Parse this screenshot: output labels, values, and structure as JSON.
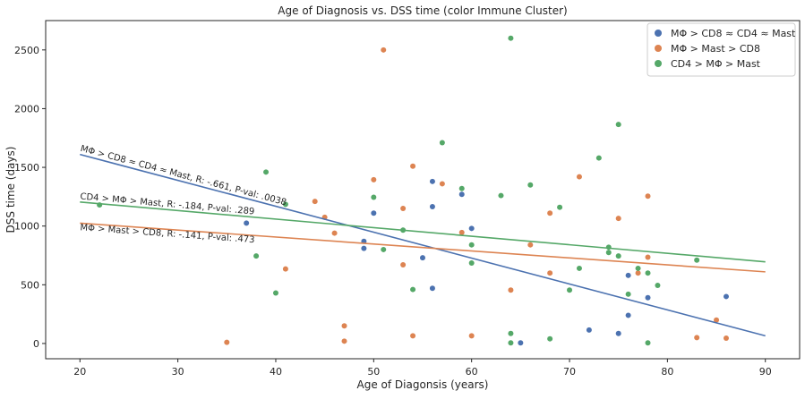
{
  "chart_data": {
    "type": "scatter",
    "title": "Age of Diagnosis vs. DSS time (color Immune Cluster)",
    "xlabel": "Age of Diagonsis (years)",
    "ylabel": "DSS time (days)",
    "xlim": [
      16.5,
      93.5
    ],
    "ylim": [
      -130,
      2750
    ],
    "xticks": [
      20,
      30,
      40,
      50,
      60,
      70,
      80,
      90
    ],
    "yticks": [
      0,
      500,
      1000,
      1500,
      2000,
      2500
    ],
    "grid": false,
    "legend_position": "top-right",
    "series": [
      {
        "name": "MΦ > CD8 ≈ CD4 ≈ Mast",
        "color": "#4c72b0",
        "points": [
          [
            37,
            1025
          ],
          [
            49,
            870
          ],
          [
            49,
            810
          ],
          [
            50,
            1110
          ],
          [
            55,
            730
          ],
          [
            56,
            1380
          ],
          [
            56,
            1165
          ],
          [
            56,
            470
          ],
          [
            59,
            1270
          ],
          [
            60,
            980
          ],
          [
            65,
            5
          ],
          [
            72,
            115
          ],
          [
            75,
            85
          ],
          [
            76,
            580
          ],
          [
            76,
            240
          ],
          [
            78,
            390
          ],
          [
            86,
            400
          ]
        ],
        "trend": {
          "x": [
            20,
            90
          ],
          "y": [
            1610,
            65
          ]
        }
      },
      {
        "name": "MΦ > Mast > CD8",
        "color": "#dd8452",
        "points": [
          [
            35,
            10
          ],
          [
            41,
            635
          ],
          [
            44,
            1210
          ],
          [
            45,
            1075
          ],
          [
            46,
            940
          ],
          [
            47,
            150
          ],
          [
            47,
            20
          ],
          [
            50,
            1395
          ],
          [
            51,
            2500
          ],
          [
            53,
            1150
          ],
          [
            53,
            670
          ],
          [
            54,
            1510
          ],
          [
            54,
            65
          ],
          [
            57,
            1360
          ],
          [
            59,
            945
          ],
          [
            60,
            65
          ],
          [
            64,
            455
          ],
          [
            66,
            840
          ],
          [
            68,
            1110
          ],
          [
            68,
            600
          ],
          [
            71,
            1420
          ],
          [
            75,
            1065
          ],
          [
            77,
            600
          ],
          [
            78,
            1255
          ],
          [
            78,
            735
          ],
          [
            83,
            50
          ],
          [
            85,
            200
          ],
          [
            86,
            45
          ]
        ],
        "trend": {
          "x": [
            20,
            90
          ],
          "y": [
            1025,
            610
          ]
        }
      },
      {
        "name": "CD4 > MΦ > Mast",
        "color": "#55a868",
        "points": [
          [
            22,
            1180
          ],
          [
            38,
            745
          ],
          [
            39,
            1460
          ],
          [
            40,
            430
          ],
          [
            41,
            1185
          ],
          [
            50,
            1245
          ],
          [
            51,
            800
          ],
          [
            53,
            965
          ],
          [
            54,
            460
          ],
          [
            57,
            1710
          ],
          [
            59,
            1320
          ],
          [
            60,
            840
          ],
          [
            60,
            685
          ],
          [
            63,
            1260
          ],
          [
            64,
            2600
          ],
          [
            64,
            85
          ],
          [
            64,
            5
          ],
          [
            66,
            1350
          ],
          [
            68,
            40
          ],
          [
            69,
            1160
          ],
          [
            70,
            455
          ],
          [
            71,
            640
          ],
          [
            73,
            1580
          ],
          [
            74,
            820
          ],
          [
            74,
            775
          ],
          [
            75,
            1865
          ],
          [
            75,
            745
          ],
          [
            76,
            420
          ],
          [
            77,
            640
          ],
          [
            78,
            600
          ],
          [
            78,
            5
          ],
          [
            79,
            495
          ],
          [
            83,
            710
          ]
        ],
        "trend": {
          "x": [
            20,
            90
          ],
          "y": [
            1205,
            695
          ]
        }
      }
    ],
    "annotations": [
      {
        "text": "MΦ > CD8 ≈ CD4 ≈ Mast, R: -.661, P-val: .0038",
        "x": 20,
        "y": 1640,
        "series": 0
      },
      {
        "text": "CD4 > MΦ > Mast, R: -.184, P-val: .289",
        "x": 20,
        "y": 1230,
        "series": 2
      },
      {
        "text": "MΦ > Mast > CD8, R: -.141, P-val: .473",
        "x": 20,
        "y": 965,
        "series": 1
      }
    ]
  }
}
